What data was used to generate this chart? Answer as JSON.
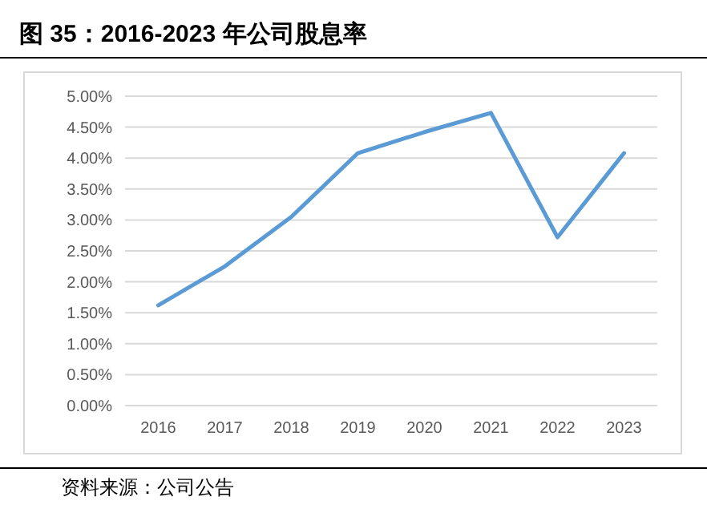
{
  "chart_data": {
    "type": "line",
    "title": "图 35：2016-2023 年公司股息率",
    "categories": [
      "2016",
      "2017",
      "2018",
      "2019",
      "2020",
      "2021",
      "2022",
      "2023"
    ],
    "series": [
      {
        "color": "#5b9bd5",
        "values": [
          1.62,
          2.25,
          3.05,
          4.08,
          4.42,
          4.73,
          2.72,
          4.08
        ]
      }
    ],
    "ylim": [
      0,
      5
    ],
    "yticks": [
      {
        "value": 0,
        "label": "0.00%"
      },
      {
        "value": 0.5,
        "label": "0.50%"
      },
      {
        "value": 1,
        "label": "1.00%"
      },
      {
        "value": 1.5,
        "label": "1.50%"
      },
      {
        "value": 2,
        "label": "2.00%"
      },
      {
        "value": 2.5,
        "label": "2.50%"
      },
      {
        "value": 3,
        "label": "3.00%"
      },
      {
        "value": 3.5,
        "label": "3.50%"
      },
      {
        "value": 4,
        "label": "4.00%"
      },
      {
        "value": 4.5,
        "label": "4.50%"
      },
      {
        "value": 5,
        "label": "5.00%"
      }
    ],
    "grid": "y",
    "marker": "none",
    "line_style": "solid",
    "annotations": [
      "资料来源：公司公告"
    ]
  }
}
